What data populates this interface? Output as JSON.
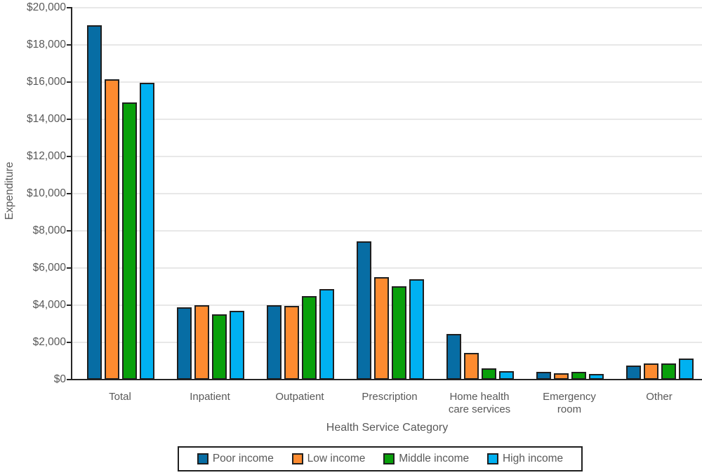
{
  "chart_data": {
    "type": "bar",
    "title": "",
    "xlabel": "Health Service Category",
    "ylabel": "Expenditure",
    "ylim": [
      0,
      20000
    ],
    "y_tick_step": 2000,
    "y_tick_labels": [
      "$0",
      "$2,000",
      "$4,000",
      "$6,000",
      "$8,000",
      "$10,000",
      "$12,000",
      "$14,000",
      "$16,000",
      "$18,000",
      "$20,000"
    ],
    "grid": true,
    "legend_position": "bottom",
    "categories": [
      "Total",
      "Inpatient",
      "Outpatient",
      "Prescription",
      "Home health care services",
      "Emergency room",
      "Other"
    ],
    "category_label_lines": [
      [
        "Total"
      ],
      [
        "Inpatient"
      ],
      [
        "Outpatient"
      ],
      [
        "Prescription"
      ],
      [
        "Home health",
        "care services"
      ],
      [
        "Emergency",
        "room"
      ],
      [
        "Other"
      ]
    ],
    "series": [
      {
        "name": "Poor income",
        "color": "#076DA4",
        "values": [
          19050,
          3900,
          4000,
          7450,
          2450,
          420,
          750
        ]
      },
      {
        "name": "Low income",
        "color": "#FD8B30",
        "values": [
          16150,
          4000,
          3950,
          5500,
          1450,
          330,
          880
        ]
      },
      {
        "name": "Middle income",
        "color": "#09A00B",
        "values": [
          14900,
          3500,
          4500,
          5000,
          600,
          400,
          850
        ]
      },
      {
        "name": "High income",
        "color": "#00B1F1",
        "values": [
          15950,
          3700,
          4880,
          5400,
          450,
          300,
          1130
        ]
      }
    ],
    "colors": {
      "axis": "#262626",
      "gridline": "#E8E8E8",
      "bar_border": "#1F1F1F",
      "text": "#595959"
    }
  }
}
